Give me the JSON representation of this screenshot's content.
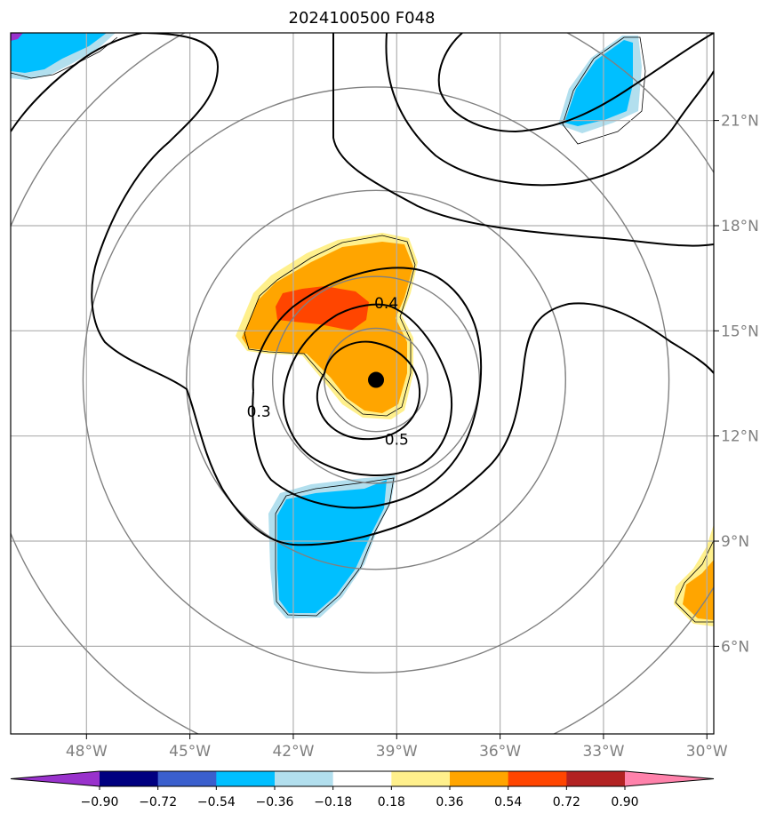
{
  "title": "2024100500 F048",
  "map": {
    "lon_range": [
      -50.2,
      -29.8
    ],
    "lat_range": [
      3.5,
      23.5
    ],
    "lon_ticks": [
      {
        "value": -48,
        "label": "48°W"
      },
      {
        "value": -45,
        "label": "45°W"
      },
      {
        "value": -42,
        "label": "42°W"
      },
      {
        "value": -39,
        "label": "39°W"
      },
      {
        "value": -36,
        "label": "36°W"
      },
      {
        "value": -33,
        "label": "33°W"
      },
      {
        "value": -30,
        "label": "30°W"
      }
    ],
    "lat_ticks": [
      {
        "value": 6,
        "label": "6°N"
      },
      {
        "value": 9,
        "label": "9°N"
      },
      {
        "value": 12,
        "label": "12°N"
      },
      {
        "value": 15,
        "label": "15°N"
      },
      {
        "value": 18,
        "label": "18°N"
      },
      {
        "value": 21,
        "label": "21°N"
      }
    ],
    "storm_center": {
      "lon": -39.6,
      "lat": 13.6
    },
    "range_rings_deg": [
      1.5,
      3,
      5.5,
      8.5,
      11.5
    ],
    "contour_labels": [
      {
        "text": "0.4",
        "lon": -39.3,
        "lat": 15.8
      },
      {
        "text": "0.3",
        "lon": -43.0,
        "lat": 12.7
      },
      {
        "text": "0.5",
        "lon": -39.0,
        "lat": 11.9
      }
    ],
    "grid": true,
    "colors": {
      "gridline": "#b0b0b0",
      "ring": "#808080",
      "contour": "#000000",
      "marker": "#000000"
    }
  },
  "colorbar": {
    "levels": [
      -0.9,
      -0.72,
      -0.54,
      -0.36,
      -0.18,
      0.18,
      0.36,
      0.54,
      0.72,
      0.9
    ],
    "tick_labels": [
      "−0.90",
      "−0.72",
      "−0.54",
      "−0.36",
      "−0.18",
      "0.18",
      "0.36",
      "0.54",
      "0.72",
      "0.90"
    ],
    "under_color": "#9932cc",
    "over_color": "#ff82ab",
    "colors": [
      "#000080",
      "#3a5fcd",
      "#00bfff",
      "#b2dfee",
      "#ffffff",
      "#fff08c",
      "#ffa500",
      "#ff4500",
      "#b22222"
    ]
  }
}
